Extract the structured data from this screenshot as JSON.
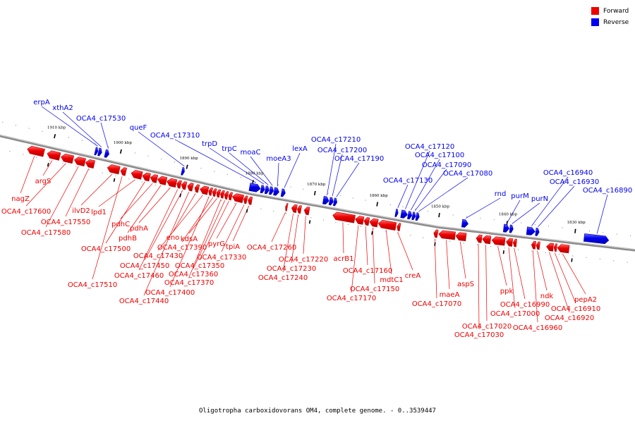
{
  "colors": {
    "forward": "#ee0000",
    "reverse": "#0000ee",
    "backbone": "#888888"
  },
  "legend": [
    {
      "label": "Forward",
      "color": "#ee0000"
    },
    {
      "label": "Reverse",
      "color": "#0000ee"
    }
  ],
  "caption": "Oligotropha carboxidovorans OM4, complete genome. - 0..3539447",
  "ticks": [
    {
      "label": "1910 kbp",
      "pos": 1910
    },
    {
      "label": "1900 kbp",
      "pos": 1900
    },
    {
      "label": "1890 kbp",
      "pos": 1890
    },
    {
      "label": "1880 kbp",
      "pos": 1880
    },
    {
      "label": "1870 kbp",
      "pos": 1870
    },
    {
      "label": "1860 kbp",
      "pos": 1860
    },
    {
      "label": "1850 kbp",
      "pos": 1850
    },
    {
      "label": "1840 kbp",
      "pos": 1840
    },
    {
      "label": "1830 kbp",
      "pos": 1830
    }
  ],
  "forward_genes": [
    {
      "name": "nagZ",
      "start": 1911.0,
      "end": 1913.5
    },
    {
      "name": "argS",
      "start": 1908.6,
      "end": 1910.5
    },
    {
      "name": "OCA4_c17600",
      "start": 1906.6,
      "end": 1908.4
    },
    {
      "name": "OCA4_c17580",
      "start": 1904.8,
      "end": 1906.4
    },
    {
      "name": "OCA4_c17550",
      "start": 1903.4,
      "end": 1904.7
    },
    {
      "name": "ilvD2",
      "start": 1899.6,
      "end": 1901.4
    },
    {
      "name": "OCA4_c17510",
      "start": 1898.6,
      "end": 1899.4
    },
    {
      "name": "lpd1",
      "start": 1896.2,
      "end": 1897.8
    },
    {
      "name": "OCA4_c17500",
      "start": 1895.0,
      "end": 1896.1
    },
    {
      "name": "pdhC",
      "start": 1893.9,
      "end": 1894.9
    },
    {
      "name": "pdhB",
      "start": 1892.5,
      "end": 1893.8
    },
    {
      "name": "pdhA",
      "start": 1891.0,
      "end": 1892.4
    },
    {
      "name": "OCA4_c17460",
      "start": 1890.3,
      "end": 1890.9
    },
    {
      "name": "OCA4_c17450",
      "start": 1889.5,
      "end": 1890.2
    },
    {
      "name": "OCA4_c17440",
      "start": 1888.5,
      "end": 1889.3
    },
    {
      "name": "eno",
      "start": 1887.6,
      "end": 1888.2
    },
    {
      "name": "OCA4_c17430",
      "start": 1886.2,
      "end": 1887.4
    },
    {
      "name": "OCA4_c17400",
      "start": 1885.6,
      "end": 1886.1
    },
    {
      "name": "OCA4_c17390",
      "start": 1885.0,
      "end": 1885.5
    },
    {
      "name": "kdsA",
      "start": 1884.4,
      "end": 1884.9
    },
    {
      "name": "OCA4_c17370",
      "start": 1883.8,
      "end": 1884.3
    },
    {
      "name": "OCA4_c17360",
      "start": 1883.2,
      "end": 1883.7
    },
    {
      "name": "OCA4_c17350",
      "start": 1882.6,
      "end": 1883.1
    },
    {
      "name": "pyrG",
      "start": 1880.9,
      "end": 1882.5
    },
    {
      "name": "OCA4_c17330",
      "start": 1880.3,
      "end": 1880.8
    },
    {
      "name": "tpiA",
      "start": 1879.6,
      "end": 1880.2
    },
    {
      "name": "OCA4_c17260",
      "start": 1873.9,
      "end": 1874.2
    },
    {
      "name": "OCA4_c17240",
      "start": 1872.4,
      "end": 1873.2
    },
    {
      "name": "OCA4_c17230",
      "start": 1871.7,
      "end": 1872.3
    },
    {
      "name": "OCA4_c17220",
      "start": 1870.4,
      "end": 1871.2
    },
    {
      "name": "acrB1",
      "start": 1863.1,
      "end": 1866.6
    },
    {
      "name": "OCA4_c17170",
      "start": 1861.7,
      "end": 1863.0
    },
    {
      "name": "OCA4_c17160",
      "start": 1860.8,
      "end": 1861.6
    },
    {
      "name": "OCA4_c17150",
      "start": 1859.4,
      "end": 1860.7
    },
    {
      "name": "mdtC1",
      "start": 1856.5,
      "end": 1859.3
    },
    {
      "name": "creA",
      "start": 1855.8,
      "end": 1856.3
    },
    {
      "name": "OCA4_c17070",
      "start": 1849.8,
      "end": 1850.4
    },
    {
      "name": "maeA",
      "start": 1847.3,
      "end": 1849.7
    },
    {
      "name": "aspS",
      "start": 1845.7,
      "end": 1847.2
    },
    {
      "name": "OCA4_c17030",
      "start": 1843.4,
      "end": 1844.2
    },
    {
      "name": "OCA4_c17020",
      "start": 1842.1,
      "end": 1843.3
    },
    {
      "name": "ppk",
      "start": 1840.0,
      "end": 1841.9
    },
    {
      "name": "OCA4_c17000",
      "start": 1838.9,
      "end": 1839.8
    },
    {
      "name": "OCA4_c16990",
      "start": 1838.3,
      "end": 1838.8
    },
    {
      "name": "OCA4_c16960",
      "start": 1835.5,
      "end": 1836.1
    },
    {
      "name": "ndk",
      "start": 1834.9,
      "end": 1835.4
    },
    {
      "name": "OCA4_c16920",
      "start": 1832.9,
      "end": 1833.9
    },
    {
      "name": "OCA4_c16910",
      "start": 1832.4,
      "end": 1832.8
    },
    {
      "name": "pepA2",
      "start": 1830.6,
      "end": 1832.3
    }
  ],
  "reverse_genes": [
    {
      "name": "erpA",
      "start": 1903.3,
      "end": 1903.7
    },
    {
      "name": "xthA2",
      "start": 1902.7,
      "end": 1903.2
    },
    {
      "name": "OCA4_c17530",
      "start": 1901.6,
      "end": 1902.2
    },
    {
      "name": "queF",
      "start": 1890.2,
      "end": 1890.6
    },
    {
      "name": "OCA4_c17310",
      "start": 1878.6,
      "end": 1880.3
    },
    {
      "name": "trpD",
      "start": 1877.9,
      "end": 1878.5
    },
    {
      "name": "trpC",
      "start": 1877.2,
      "end": 1877.8
    },
    {
      "name": "moaC",
      "start": 1876.5,
      "end": 1877.1
    },
    {
      "name": "moeA3",
      "start": 1875.6,
      "end": 1876.4
    },
    {
      "name": "lexA",
      "start": 1874.6,
      "end": 1875.2
    },
    {
      "name": "OCA4_c17210",
      "start": 1867.6,
      "end": 1868.5
    },
    {
      "name": "OCA4_c17200",
      "start": 1866.9,
      "end": 1867.5
    },
    {
      "name": "OCA4_c17190",
      "start": 1866.3,
      "end": 1866.8
    },
    {
      "name": "OCA4_c17130",
      "start": 1856.5,
      "end": 1856.9
    },
    {
      "name": "OCA4_c17120",
      "start": 1855.0,
      "end": 1856.0
    },
    {
      "name": "OCA4_c17100",
      "start": 1854.3,
      "end": 1854.9
    },
    {
      "name": "OCA4_c17090",
      "start": 1853.7,
      "end": 1854.2
    },
    {
      "name": "OCA4_c17080",
      "start": 1853.1,
      "end": 1853.6
    },
    {
      "name": "rnd",
      "start": 1845.6,
      "end": 1846.5
    },
    {
      "name": "purM",
      "start": 1839.6,
      "end": 1840.4
    },
    {
      "name": "purN",
      "start": 1839.0,
      "end": 1839.5
    },
    {
      "name": "OCA4_c16940",
      "start": 1835.8,
      "end": 1837.0
    },
    {
      "name": "OCA4_c16930",
      "start": 1835.2,
      "end": 1835.7
    },
    {
      "name": "OCA4_c16890",
      "start": 1825.0,
      "end": 1828.6
    }
  ]
}
